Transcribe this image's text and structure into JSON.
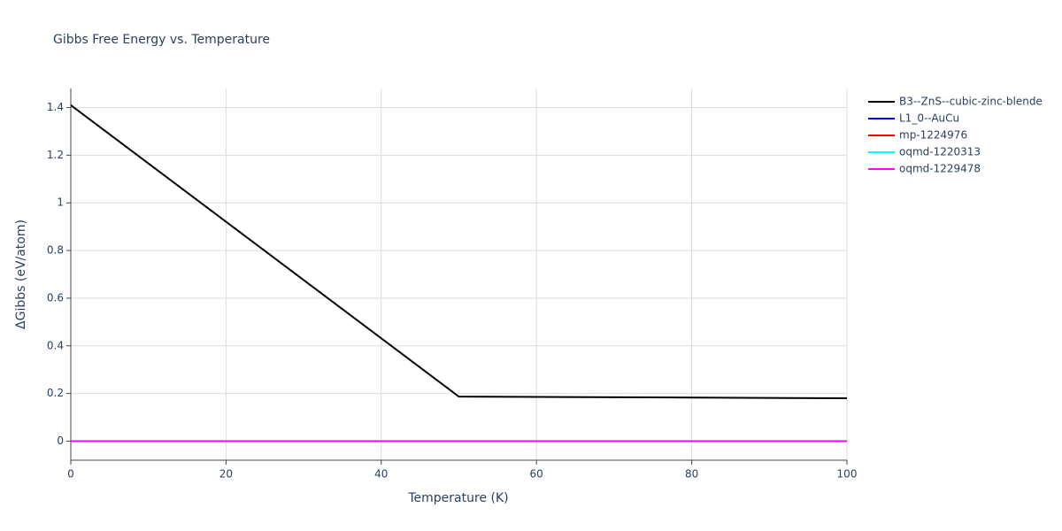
{
  "chart_data": {
    "type": "line",
    "title": "Gibbs Free Energy vs. Temperature",
    "x_label": "Temperature (K)",
    "y_label": "ΔGibbs (eV/atom)",
    "x": [
      0,
      50,
      100
    ],
    "series": [
      {
        "name": "B3--ZnS--cubic-zinc-blende",
        "color": "#000000",
        "values": [
          1.41,
          0.187,
          0.18
        ]
      },
      {
        "name": "L1_0--AuCu",
        "color": "#0000ff",
        "values": [
          0,
          0,
          0
        ]
      },
      {
        "name": "mp-1224976",
        "color": "#ff0000",
        "values": [
          0,
          0,
          0
        ]
      },
      {
        "name": "oqmd-1220313",
        "color": "#00ffff",
        "values": [
          0,
          0,
          0
        ]
      },
      {
        "name": "oqmd-1229478",
        "color": "#ff00ff",
        "values": [
          0,
          0,
          0
        ]
      }
    ],
    "xlim": [
      0,
      100
    ],
    "xticks": [
      0,
      20,
      40,
      60,
      80,
      100
    ],
    "ylim": [
      -0.08,
      1.48
    ],
    "yticks": [
      0,
      0.2,
      0.4,
      0.6,
      0.8,
      1,
      1.2,
      1.4
    ],
    "grid": true,
    "legend": "right"
  }
}
